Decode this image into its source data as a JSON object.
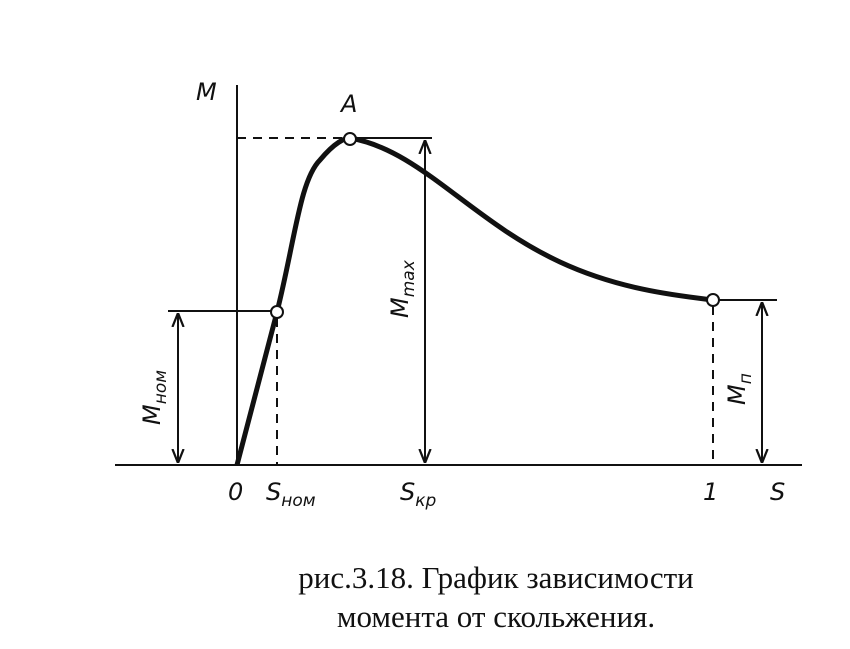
{
  "figure": {
    "axes": {
      "y_label": "M",
      "x_label": "S",
      "origin": "0",
      "unit_mark": "1"
    },
    "points": {
      "peak": "A"
    },
    "labels": {
      "s_nom": {
        "main": "S",
        "sub": "ном"
      },
      "s_kr": {
        "main": "S",
        "sub": "кр"
      },
      "m_max": {
        "main": "M",
        "sub": "max"
      },
      "m_nom": {
        "main": "M",
        "sub": "ном"
      },
      "m_p": {
        "main": "M",
        "sub": "п"
      }
    },
    "caption": [
      "рис.3.18. График зависимости",
      "момента от скольжения."
    ]
  }
}
